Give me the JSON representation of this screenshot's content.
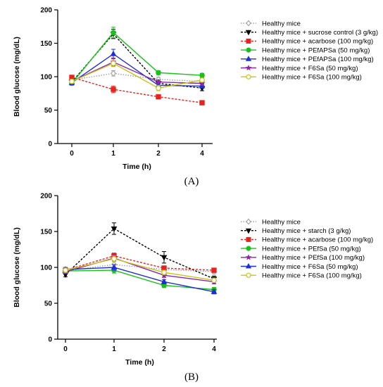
{
  "figure": {
    "panels": [
      {
        "label": "(A)",
        "chart_data": {
          "type": "line",
          "xlabel": "Time (h)",
          "ylabel": "Blood glucose (mg/dL)",
          "categories": [
            "0",
            "1",
            "2",
            "4"
          ],
          "ylim": [
            0,
            200
          ],
          "yticks": [
            "0",
            "50",
            "100",
            "150",
            "200"
          ],
          "grid": false,
          "legend_position": "right",
          "series": [
            {
              "name": "Healthy mice",
              "values": [
                95,
                105,
                96,
                93
              ],
              "errors": [
                3,
                4,
                3,
                3
              ],
              "color": "#a0a0a0",
              "marker": "diamond-open",
              "dash": "dotted"
            },
            {
              "name": "Healthy mice + sucrose control (3 g/kg)",
              "values": [
                92,
                164,
                90,
                83
              ],
              "errors": [
                3,
                7,
                5,
                4
              ],
              "color": "#000000",
              "marker": "triangle-down",
              "dash": "dashed"
            },
            {
              "name": "Healthy mice + acarbose (100 mg/kg)",
              "values": [
                99,
                81,
                70,
                61
              ],
              "errors": [
                3,
                5,
                3,
                3
              ],
              "color": "#e8221c",
              "marker": "square",
              "dash": "dashed"
            },
            {
              "name": "Healthy mice + PEfAPSa (50 mg/kg)",
              "values": [
                90,
                166,
                106,
                102
              ],
              "errors": [
                3,
                8,
                3,
                3
              ],
              "color": "#19c21a",
              "marker": "circle",
              "dash": "solid"
            },
            {
              "name": "Healthy mice + PEfAPSa (100 mg/kg)",
              "values": [
                91,
                134,
                87,
                86
              ],
              "errors": [
                3,
                7,
                4,
                3
              ],
              "color": "#1f2fd8",
              "marker": "triangle-up",
              "dash": "solid"
            },
            {
              "name": "Healthy mice + F6Sa (50 mg/kg)",
              "values": [
                93,
                122,
                92,
                90
              ],
              "errors": [
                3,
                6,
                3,
                3
              ],
              "color": "#8e24aa",
              "marker": "star",
              "dash": "solid"
            },
            {
              "name": "Healthy mice + F6Sa (100 mg/kg)",
              "values": [
                93,
                120,
                83,
                95
              ],
              "errors": [
                3,
                5,
                4,
                3
              ],
              "color": "#c8c41c",
              "marker": "circle-open",
              "dash": "solid"
            }
          ]
        }
      },
      {
        "label": "(B)",
        "chart_data": {
          "type": "line",
          "xlabel": "Time (h)",
          "ylabel": "Blood glucose (mg/dL)",
          "categories": [
            "0",
            "1",
            "2",
            "4"
          ],
          "ylim": [
            0,
            200
          ],
          "yticks": [
            "0",
            "50",
            "100",
            "150",
            "200"
          ],
          "grid": false,
          "legend_position": "right",
          "series": [
            {
              "name": "Healthy mice",
              "values": [
                95,
                104,
                97,
                94
              ],
              "errors": [
                3,
                4,
                3,
                3
              ],
              "color": "#a0a0a0",
              "marker": "diamond-open",
              "dash": "dotted"
            },
            {
              "name": "Healthy mice + starch (3 g/kg)",
              "values": [
                90,
                154,
                114,
                84
              ],
              "errors": [
                3,
                8,
                8,
                4
              ],
              "color": "#000000",
              "marker": "triangle-down",
              "dash": "dashed"
            },
            {
              "name": "Healthy mice + acarbose (100 mg/kg)",
              "values": [
                96,
                116,
                99,
                96
              ],
              "errors": [
                3,
                4,
                3,
                3
              ],
              "color": "#e8221c",
              "marker": "square",
              "dash": "dashed"
            },
            {
              "name": "Healthy mice + PEfSa (50 mg/kg)",
              "values": [
                95,
                96,
                75,
                69
              ],
              "errors": [
                3,
                4,
                3,
                3
              ],
              "color": "#19c21a",
              "marker": "circle",
              "dash": "solid"
            },
            {
              "name": "Healthy mice + PEfSa (100 mg/kg)",
              "values": [
                94,
                113,
                89,
                80
              ],
              "errors": [
                3,
                4,
                3,
                3
              ],
              "color": "#8e24aa",
              "marker": "star",
              "dash": "solid"
            },
            {
              "name": "Healthy mice + F6Sa (50 mg/kg)",
              "values": [
                97,
                100,
                80,
                66
              ],
              "errors": [
                3,
                4,
                3,
                3
              ],
              "color": "#1f2fd8",
              "marker": "triangle-up",
              "dash": "solid"
            },
            {
              "name": "Healthy mice + F6Sa (100 mg/kg)",
              "values": [
                96,
                112,
                93,
                82
              ],
              "errors": [
                3,
                4,
                3,
                3
              ],
              "color": "#c8c41c",
              "marker": "circle-open",
              "dash": "solid"
            }
          ]
        }
      }
    ]
  }
}
